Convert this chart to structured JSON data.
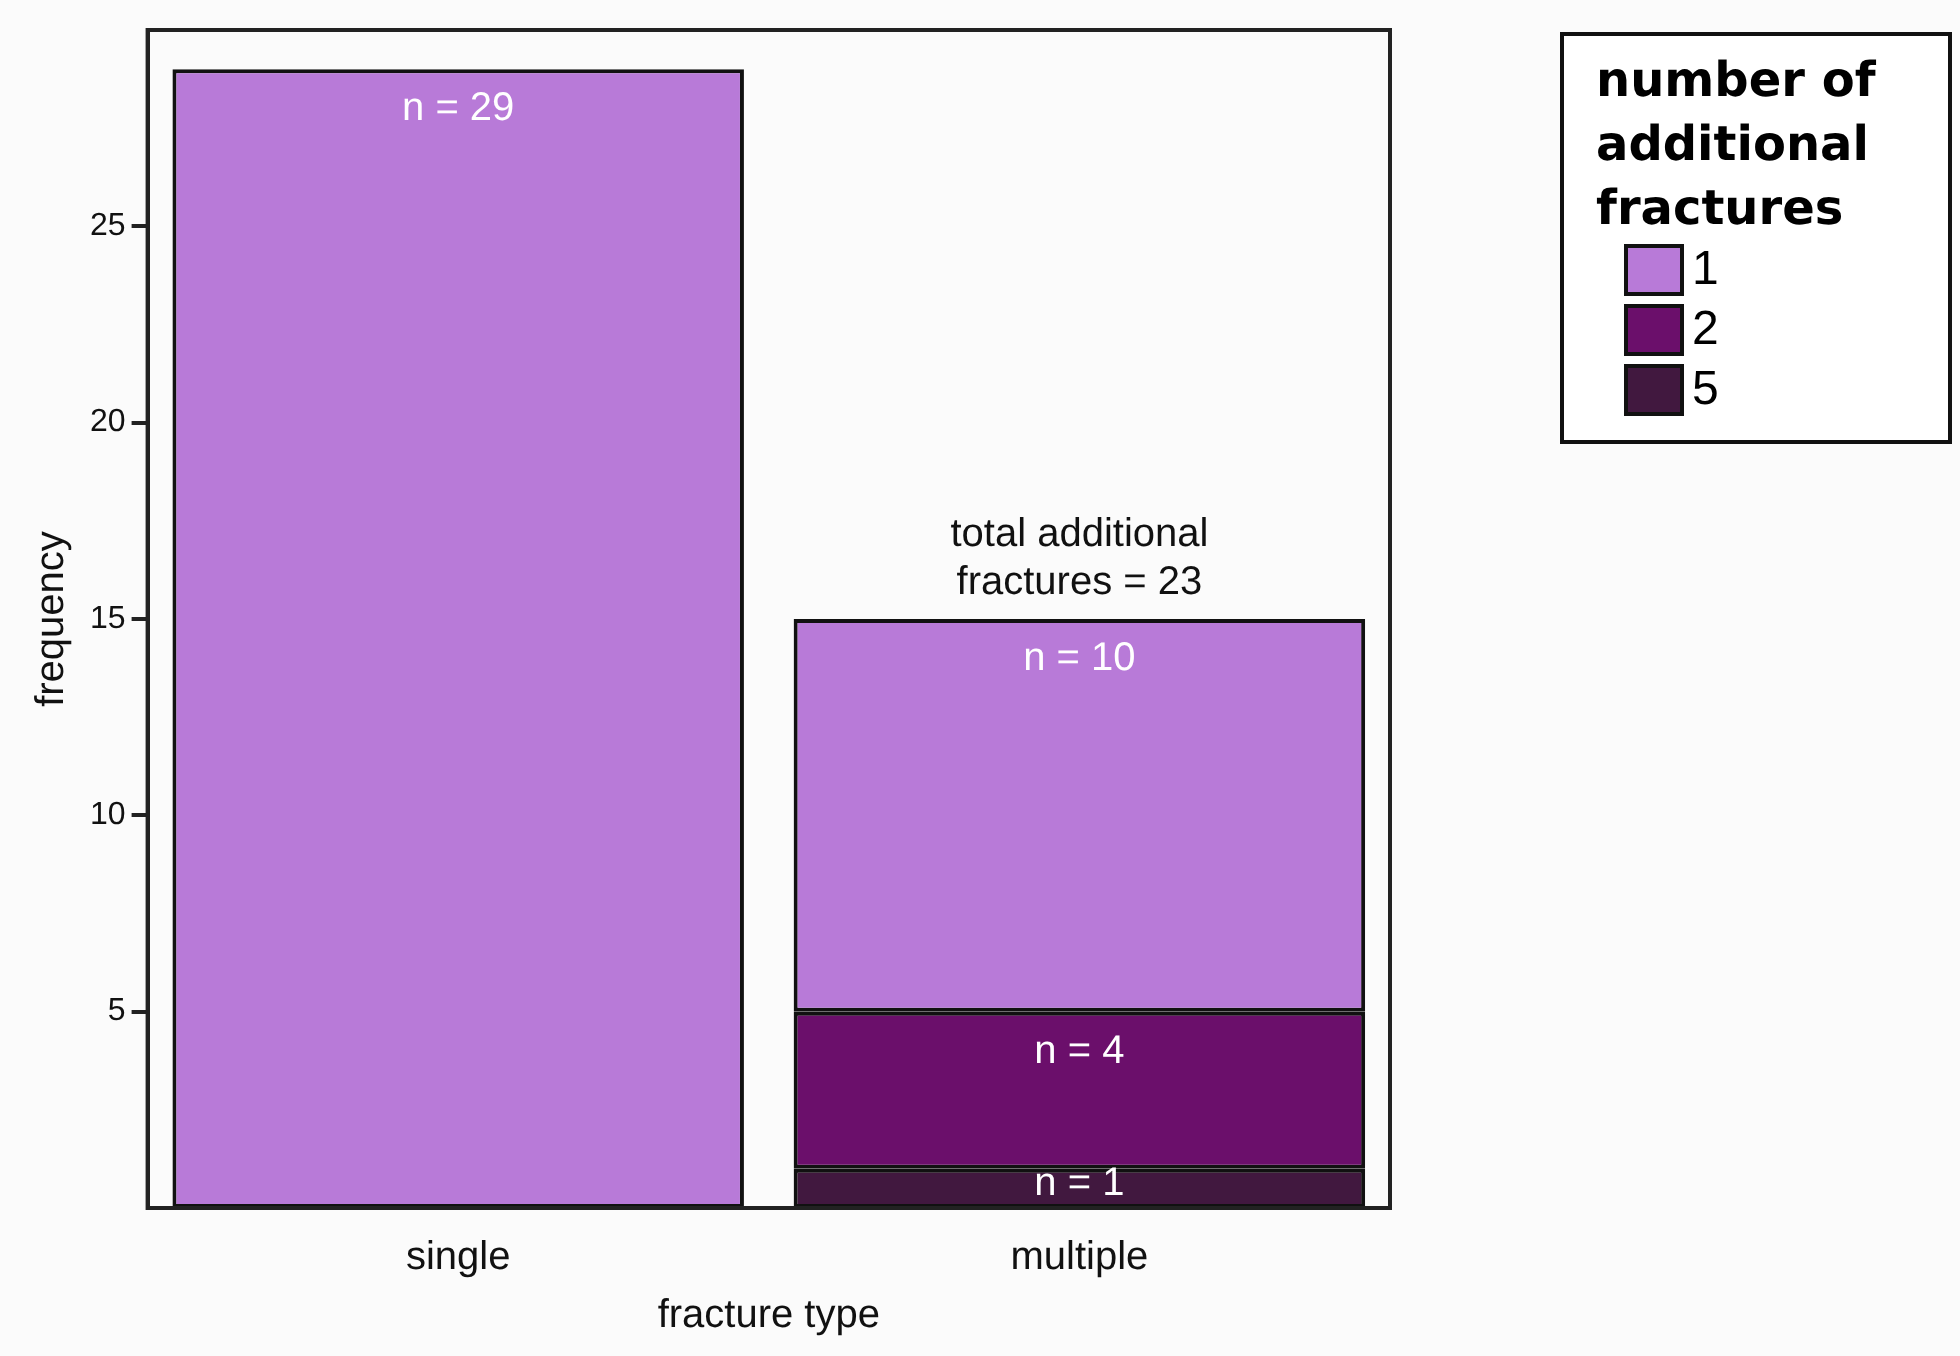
{
  "chart_data": {
    "type": "bar",
    "stacked": true,
    "xlabel": "fracture type",
    "ylabel": "frequency",
    "legend_title": "number of additional fractures",
    "legend": "top right",
    "categories": [
      "single",
      "multiple"
    ],
    "series": [
      {
        "name": "5",
        "color": "#41183f",
        "values": [
          null,
          1
        ],
        "value_labels": [
          null,
          "n = 1"
        ]
      },
      {
        "name": "2",
        "color": "#6b0f6b",
        "values": [
          null,
          4
        ],
        "value_labels": [
          null,
          "n = 4"
        ]
      },
      {
        "name": "1",
        "color": "#b87ad8",
        "values": [
          29,
          10
        ],
        "value_labels": [
          "n = 29",
          "n = 10"
        ]
      }
    ],
    "ylim": [
      0,
      30
    ],
    "yticks": [
      5,
      10,
      15,
      20,
      25
    ],
    "grid": false,
    "annotations": [
      {
        "text": "total additional fractures = 23",
        "x": "multiple",
        "y": 15
      }
    ]
  }
}
